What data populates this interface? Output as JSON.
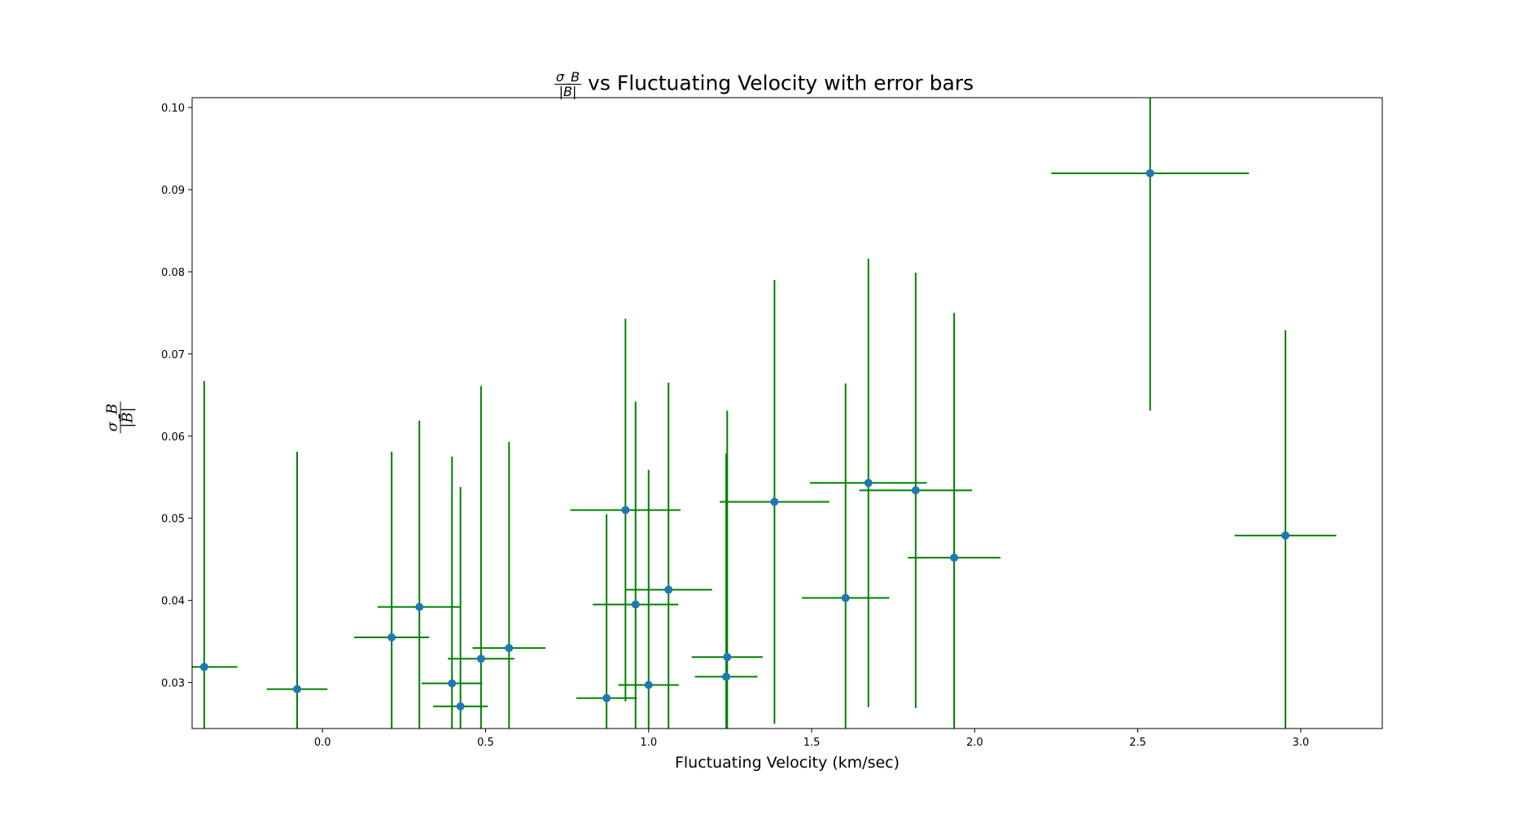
{
  "chart_data": {
    "type": "scatter",
    "title": "vs Fluctuating Velocity with error bars",
    "title_fraction": {
      "numerator": "σ_B",
      "denominator": "|B̄|"
    },
    "xlabel": "Fluctuating Velocity (km/sec)",
    "ylabel_fraction": {
      "numerator": "σ_B",
      "denominator": "|B̄|"
    },
    "xlim": [
      -0.4,
      3.25
    ],
    "ylim": [
      0.0244,
      0.1012
    ],
    "x_ticks": [
      0.0,
      0.5,
      1.0,
      1.5,
      2.0,
      2.5,
      3.0
    ],
    "x_tick_labels": [
      "0.0",
      "0.5",
      "1.0",
      "1.5",
      "2.0",
      "2.5",
      "3.0"
    ],
    "y_ticks": [
      0.03,
      0.04,
      0.05,
      0.06,
      0.07,
      0.08,
      0.09,
      0.1
    ],
    "y_tick_labels": [
      "0.03",
      "0.04",
      "0.05",
      "0.06",
      "0.07",
      "0.08",
      "0.09",
      "0.10"
    ],
    "grid": false,
    "legend": "none",
    "marker_color": "#1f77b4",
    "errorbar_color": "#008000",
    "series": [
      {
        "points": [
          {
            "x": -0.363,
            "y": 0.0319,
            "xerr": 0.102,
            "yerr": 0.0348
          },
          {
            "x": -0.078,
            "y": 0.0292,
            "xerr": 0.093,
            "yerr": 0.0289
          },
          {
            "x": 0.212,
            "y": 0.0355,
            "xerr": 0.115,
            "yerr": 0.0226
          },
          {
            "x": 0.297,
            "y": 0.0392,
            "xerr": 0.128,
            "yerr": 0.0227
          },
          {
            "x": 0.397,
            "y": 0.0299,
            "xerr": 0.093,
            "yerr": 0.0276
          },
          {
            "x": 0.423,
            "y": 0.0271,
            "xerr": 0.084,
            "yerr": 0.0267
          },
          {
            "x": 0.486,
            "y": 0.0329,
            "xerr": 0.102,
            "yerr": 0.0332
          },
          {
            "x": 0.572,
            "y": 0.0342,
            "xerr": 0.112,
            "yerr": 0.0251
          },
          {
            "x": 0.871,
            "y": 0.0281,
            "xerr": 0.093,
            "yerr": 0.0224
          },
          {
            "x": 0.929,
            "y": 0.051,
            "xerr": 0.169,
            "yerr": 0.0233
          },
          {
            "x": 0.96,
            "y": 0.0395,
            "xerr": 0.131,
            "yerr": 0.0247
          },
          {
            "x": 1.0,
            "y": 0.0297,
            "xerr": 0.093,
            "yerr": 0.0262
          },
          {
            "x": 1.061,
            "y": 0.0413,
            "xerr": 0.134,
            "yerr": 0.0252
          },
          {
            "x": 1.238,
            "y": 0.0307,
            "xerr": 0.096,
            "yerr": 0.0272
          },
          {
            "x": 1.241,
            "y": 0.0331,
            "xerr": 0.109,
            "yerr": 0.03
          },
          {
            "x": 1.386,
            "y": 0.052,
            "xerr": 0.168,
            "yerr": 0.027
          },
          {
            "x": 1.604,
            "y": 0.0403,
            "xerr": 0.134,
            "yerr": 0.0261
          },
          {
            "x": 1.674,
            "y": 0.0543,
            "xerr": 0.179,
            "yerr": 0.0273
          },
          {
            "x": 1.819,
            "y": 0.0534,
            "xerr": 0.173,
            "yerr": 0.0265
          },
          {
            "x": 1.937,
            "y": 0.0452,
            "xerr": 0.142,
            "yerr": 0.0298
          },
          {
            "x": 2.538,
            "y": 0.092,
            "xerr": 0.303,
            "yerr": 0.0289
          },
          {
            "x": 2.953,
            "y": 0.0479,
            "xerr": 0.156,
            "yerr": 0.025
          }
        ]
      }
    ]
  }
}
